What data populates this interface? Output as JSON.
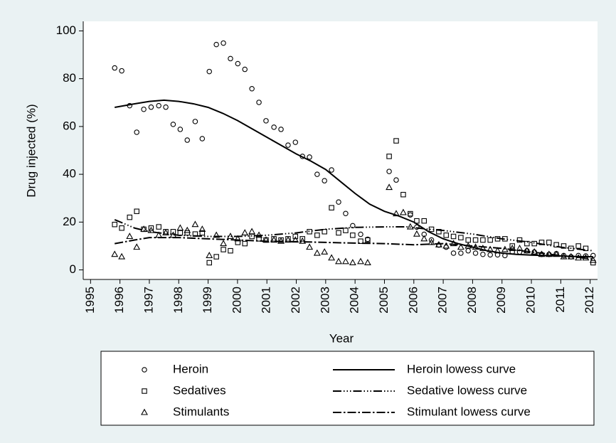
{
  "chart_data": {
    "type": "scatter",
    "xlabel": "Year",
    "ylabel": "Drug injected (%)",
    "xlim": [
      1994.75,
      2012.25
    ],
    "ylim": [
      -4,
      104
    ],
    "xticks": [
      1995,
      1996,
      1997,
      1998,
      1999,
      2000,
      2001,
      2002,
      2003,
      2004,
      2005,
      2006,
      2007,
      2008,
      2009,
      2010,
      2011,
      2012
    ],
    "yticks": [
      0,
      20,
      40,
      60,
      80,
      100
    ],
    "grid": false,
    "legend": "bottom",
    "series": [
      {
        "name": "Heroin",
        "mode": "markers",
        "marker": "circle",
        "color": "#000000",
        "x": [
          1995.82,
          1996.06,
          1996.33,
          1996.57,
          1996.81,
          1997.06,
          1997.32,
          1997.56,
          1997.81,
          1998.05,
          1998.29,
          1998.56,
          1998.8,
          1999.04,
          1999.28,
          1999.52,
          1999.76,
          2000.01,
          2000.25,
          2000.49,
          2000.73,
          2000.97,
          2001.24,
          2001.48,
          2001.72,
          2001.97,
          2002.21,
          2002.45,
          2002.71,
          2002.96,
          2003.2,
          2003.44,
          2003.68,
          2003.92,
          2004.19,
          2004.43,
          2005.16,
          2005.4,
          2005.88,
          2006.1,
          2006.35,
          2006.6,
          2006.85,
          2007.1,
          2007.35,
          2007.6,
          2007.85,
          2008.1,
          2008.35,
          2008.6,
          2008.85,
          2009.1,
          2009.35,
          2009.6,
          2009.85,
          2010.1,
          2010.35,
          2010.6,
          2010.85,
          2011.1,
          2011.35,
          2011.6,
          2011.85,
          2012.1
        ],
        "values": [
          84.5,
          83.3,
          68.7,
          57.6,
          67.2,
          68.1,
          68.7,
          68.1,
          60.9,
          58.8,
          54.3,
          62.1,
          54.9,
          83,
          94.3,
          94.9,
          88.4,
          86.3,
          83.9,
          75.8,
          70.1,
          62.4,
          59.7,
          58.8,
          52.2,
          53.4,
          47.5,
          47.2,
          40,
          37.3,
          41.8,
          28.4,
          23.6,
          18.5,
          14.9,
          12.8,
          41.2,
          37.6,
          23,
          17.9,
          14.9,
          12.5,
          10.4,
          9.5,
          7,
          7,
          8,
          7,
          6.5,
          6.3,
          6.3,
          6,
          7.5,
          7.5,
          8,
          7.5,
          6.5,
          6.5,
          6.8,
          6,
          5.5,
          6,
          5.8,
          6
        ]
      },
      {
        "name": "Sedatives",
        "mode": "markers",
        "marker": "square",
        "color": "#000000",
        "x": [
          1995.82,
          1996.06,
          1996.33,
          1996.57,
          1996.81,
          1997.06,
          1997.32,
          1997.56,
          1997.81,
          1998.05,
          1998.29,
          1998.56,
          1998.8,
          1999.04,
          1999.28,
          1999.52,
          1999.76,
          2000.01,
          2000.25,
          2000.49,
          2000.73,
          2000.97,
          2001.24,
          2001.48,
          2001.72,
          2001.97,
          2002.21,
          2002.45,
          2002.71,
          2002.96,
          2003.2,
          2003.44,
          2003.68,
          2003.92,
          2004.19,
          2004.43,
          2005.16,
          2005.4,
          2005.64,
          2005.88,
          2006.1,
          2006.35,
          2006.6,
          2006.85,
          2007.1,
          2007.35,
          2007.6,
          2007.85,
          2008.1,
          2008.35,
          2008.6,
          2008.85,
          2009.1,
          2009.35,
          2009.6,
          2009.85,
          2010.1,
          2010.35,
          2010.6,
          2010.85,
          2011.1,
          2011.35,
          2011.6,
          2011.85,
          2012.1
        ],
        "values": [
          19,
          17.5,
          22,
          24.5,
          17,
          17.5,
          18,
          16,
          16,
          15.5,
          15.5,
          15,
          15.5,
          3,
          5.5,
          8.5,
          8,
          11.5,
          11,
          14,
          13,
          12.5,
          13,
          12.5,
          13,
          14,
          13,
          16,
          14.5,
          16,
          26,
          15.5,
          16.5,
          14.5,
          12,
          12.5,
          47.5,
          54,
          31.5,
          23.5,
          20.5,
          20.5,
          17,
          16,
          14.5,
          14,
          13.5,
          12.5,
          12.5,
          12.5,
          12.5,
          13,
          13,
          10,
          12.5,
          11,
          11,
          11.5,
          11.5,
          10.5,
          10,
          9,
          10,
          9,
          3
        ]
      },
      {
        "name": "Stimulants",
        "mode": "markers",
        "marker": "triangle",
        "color": "#000000",
        "x": [
          1995.82,
          1996.06,
          1996.33,
          1996.57,
          1996.81,
          1997.06,
          1997.32,
          1997.56,
          1997.81,
          1998.05,
          1998.29,
          1998.56,
          1998.8,
          1999.04,
          1999.28,
          1999.52,
          1999.76,
          2000.01,
          2000.25,
          2000.49,
          2000.73,
          2000.97,
          2001.24,
          2001.48,
          2001.72,
          2001.97,
          2002.21,
          2002.45,
          2002.71,
          2002.96,
          2003.2,
          2003.44,
          2003.68,
          2003.92,
          2004.19,
          2004.43,
          2005.16,
          2005.4,
          2005.64,
          2005.88,
          2006.1,
          2006.35,
          2006.6,
          2006.85,
          2007.1,
          2007.35,
          2007.6,
          2007.85,
          2008.1,
          2008.35,
          2008.6,
          2008.85,
          2009.1,
          2009.35,
          2009.6,
          2009.85,
          2010.1,
          2010.35,
          2010.6,
          2010.85,
          2011.1,
          2011.35,
          2011.6,
          2011.85,
          2012.1
        ],
        "values": [
          6.5,
          5.5,
          14,
          9.5,
          17,
          16.5,
          14.5,
          15.5,
          14.5,
          17.5,
          16.5,
          19,
          17,
          6,
          14.5,
          11,
          14,
          13,
          15.5,
          16,
          14.5,
          12.5,
          12.5,
          12,
          12.5,
          12.5,
          12,
          9.5,
          7,
          7.5,
          5,
          3.5,
          3.5,
          3,
          3.5,
          3,
          34.5,
          23.5,
          24,
          18,
          15,
          13,
          11.5,
          10.5,
          10,
          11,
          9.5,
          10,
          9.5,
          9,
          8.5,
          8,
          8.5,
          9,
          9,
          8,
          7.5,
          6.5,
          6.5,
          6.5,
          5.5,
          5.5,
          5,
          5,
          4
        ]
      },
      {
        "name": "Heroin lowess curve",
        "mode": "lines",
        "dash": "solid",
        "color": "#000000",
        "x": [
          1995.82,
          1996.5,
          1997,
          1997.5,
          1998,
          1998.5,
          1999,
          1999.5,
          2000,
          2000.5,
          2001,
          2001.5,
          2002,
          2002.5,
          2003,
          2003.5,
          2004,
          2004.5,
          2005,
          2005.5,
          2006,
          2006.5,
          2007,
          2007.5,
          2008,
          2008.5,
          2009,
          2009.5,
          2010,
          2010.5,
          2011,
          2011.5,
          2012.1
        ],
        "values": [
          68,
          69.5,
          70.5,
          71,
          70.5,
          69.5,
          68,
          65.5,
          62.5,
          59,
          55.5,
          52,
          48.5,
          45.5,
          42,
          37,
          32,
          27.5,
          24.5,
          22.5,
          20,
          16,
          13,
          11,
          9.5,
          8,
          7,
          6.5,
          6.2,
          6,
          5.8,
          5.6,
          5.5
        ]
      },
      {
        "name": "Sedative lowess curve",
        "mode": "lines",
        "dash": "long-dash-triple-dot",
        "color": "#000000",
        "x": [
          1995.82,
          1996.5,
          1997,
          1998,
          1999,
          2000,
          2001,
          2002,
          2003,
          2004,
          2005,
          2005.8,
          2006.5,
          2007,
          2008,
          2009,
          2010,
          2011,
          2012.1
        ],
        "values": [
          21,
          17.5,
          16,
          14.5,
          14,
          14,
          14.5,
          15.5,
          17,
          17.8,
          18,
          18,
          17,
          16.5,
          15,
          13,
          11.5,
          9.5,
          8
        ]
      },
      {
        "name": "Stimulant lowess curve",
        "mode": "lines",
        "dash": "long-dash-dot",
        "color": "#000000",
        "x": [
          1995.82,
          1996.5,
          1997,
          1998,
          1999,
          2000,
          2001,
          2002,
          2003,
          2004,
          2005,
          2006,
          2007,
          2008,
          2009,
          2010,
          2011,
          2012.1
        ],
        "values": [
          11,
          12.5,
          13.5,
          13.5,
          13,
          12.5,
          12,
          11.8,
          11.5,
          11.2,
          11,
          10.5,
          11,
          10,
          9,
          7.5,
          6,
          4.5
        ]
      }
    ]
  }
}
